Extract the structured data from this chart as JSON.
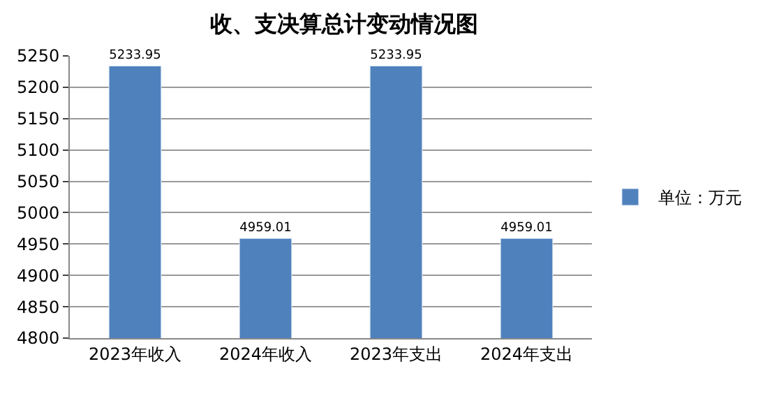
{
  "chart_data": {
    "type": "bar",
    "title": "收、支决算总计变动情况图",
    "categories": [
      "2023年收入",
      "2024年收入",
      "2023年支出",
      "2024年支出"
    ],
    "series": [
      {
        "name": "单位：万元",
        "color": "#4f81bd",
        "values": [
          5233.95,
          4959.01,
          5233.95,
          4959.01
        ]
      }
    ],
    "ylim": [
      4800,
      5250
    ],
    "yticks": [
      4800,
      4850,
      4900,
      4950,
      5000,
      5050,
      5100,
      5150,
      5200,
      5250
    ],
    "grid": "y",
    "legend": "right",
    "data_labels": true
  }
}
